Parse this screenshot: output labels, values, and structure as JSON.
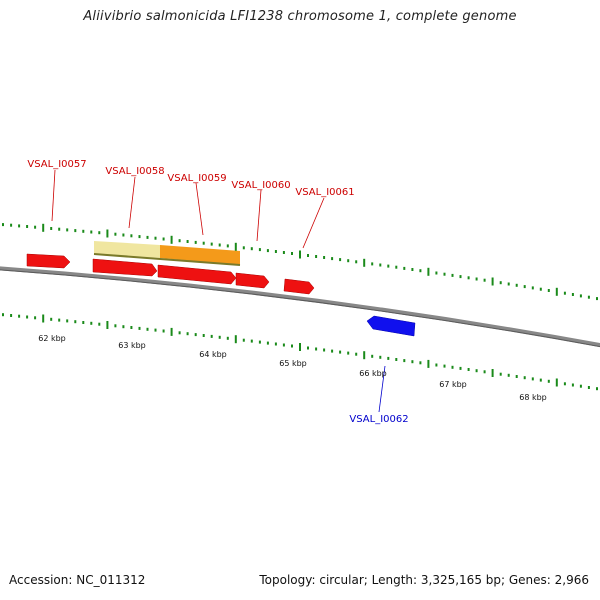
{
  "title": "Aliivibrio salmonicida LFI1238 chromosome 1, complete genome",
  "footer": {
    "accession": "Accession: NC_011312",
    "summary": "Topology: circular; Length: 3,325,165 bp; Genes: 2,966"
  },
  "scale": {
    "ticks": [
      "62 kbp",
      "63 kbp",
      "64 kbp",
      "65 kbp",
      "66 kbp",
      "67 kbp",
      "68 kbp"
    ]
  },
  "genes": [
    {
      "label": "VSAL_I0057",
      "strand": "forward",
      "color": "#ee0000"
    },
    {
      "label": "VSAL_I0058",
      "strand": "forward",
      "color": "#ee0000"
    },
    {
      "label": "VSAL_I0059",
      "strand": "forward",
      "color": "#ee0000"
    },
    {
      "label": "VSAL_I0060",
      "strand": "forward",
      "color": "#ee0000"
    },
    {
      "label": "VSAL_I0061",
      "strand": "forward",
      "color": "#ee0000"
    },
    {
      "label": "VSAL_I0062",
      "strand": "reverse",
      "color": "#0000ee"
    }
  ],
  "colors": {
    "forward_label": "#cc0000",
    "reverse_label": "#0000cc",
    "tick": "#1a8a1a",
    "backbone": "#888888",
    "highlight_light": "#f0e6a0",
    "highlight_dark": "#f49a1a"
  }
}
